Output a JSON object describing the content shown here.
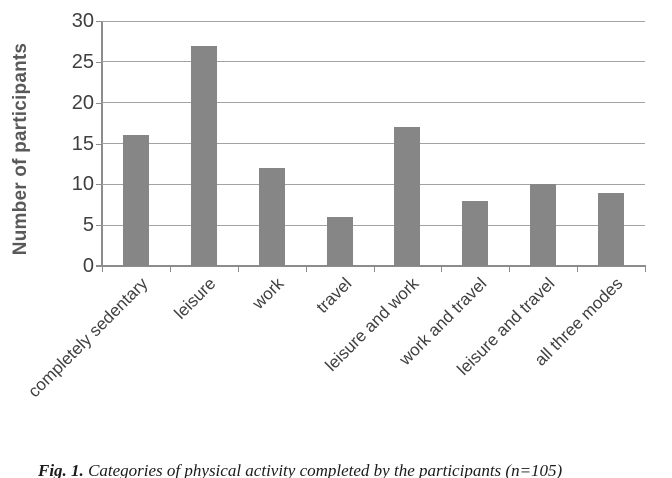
{
  "chart_data": {
    "type": "bar",
    "title": "",
    "xlabel": "",
    "ylabel": "Number of participants",
    "categories": [
      "completely sedentary",
      "leisure",
      "work",
      "travel",
      "leisure and work",
      "work and travel",
      "leisure and travel",
      "all three modes"
    ],
    "values": [
      16,
      27,
      12,
      6,
      17,
      8,
      10,
      9
    ],
    "ylim": [
      0,
      30
    ],
    "yticks": [
      0,
      5,
      10,
      15,
      20,
      25,
      30
    ],
    "grid": true,
    "legend": false,
    "bar_color": "#868686",
    "gridline_color": "#a3a3a3",
    "axis_color": "#8c8c8c",
    "tick_label_color": "#3f3f3f",
    "axis_title_color": "#595959"
  },
  "caption": {
    "fig_label": "Fig. 1.",
    "text": " Categories of physical activity completed by the participants (n=105)"
  }
}
